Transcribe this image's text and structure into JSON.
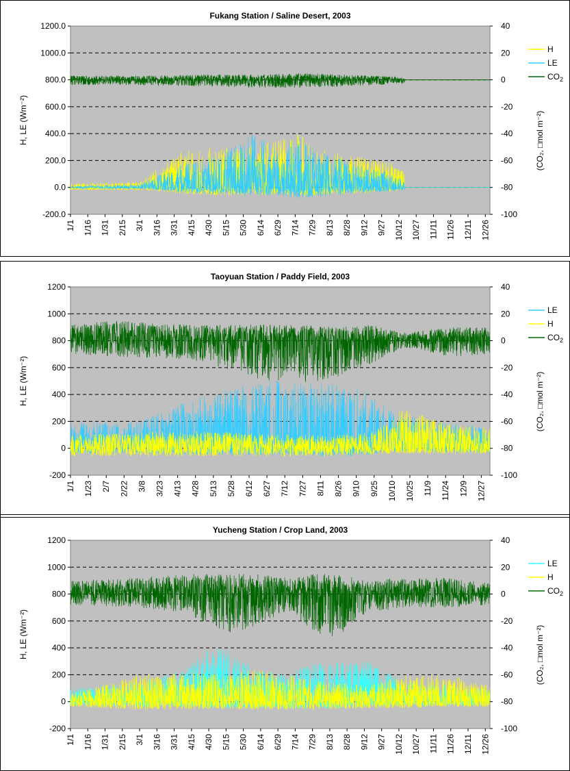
{
  "charts": [
    {
      "chart_data": {
        "type": "line",
        "title": "Fukang Station / Saline Desert, 2003",
        "ylabel": "H, LE (Wm⁻²)",
        "y2label": "(CO₂, □mol m⁻²)",
        "ylim": [
          -200,
          1200
        ],
        "y2lim": [
          -100,
          40
        ],
        "yticks": [
          "-200.0",
          "0.0",
          "200.0",
          "400.0",
          "600.0",
          "800.0",
          "1000.0",
          "1200.0"
        ],
        "y2ticks": [
          "-100",
          "-80",
          "-60",
          "-40",
          "-20",
          "0",
          "20",
          "40"
        ],
        "xticks": [
          "1/1",
          "1/16",
          "1/31",
          "2/15",
          "3/1",
          "3/16",
          "3/31",
          "4/15",
          "4/30",
          "5/15",
          "5/30",
          "6/14",
          "6/29",
          "7/14",
          "7/29",
          "8/13",
          "8/28",
          "9/12",
          "9/27",
          "10/12",
          "10/27",
          "11/11",
          "11/26",
          "12/11",
          "12/26"
        ],
        "x_start_day": 1,
        "x_step_days": 15,
        "legend_position": "right",
        "legend": [
          "H",
          "LE",
          "CO2"
        ],
        "grid": "dashed horizontal",
        "series": [
          {
            "name": "H",
            "color": "#ffff00",
            "axis": "left",
            "days": [
              1,
              60,
              80,
              100,
              130,
              160,
              180,
              200,
              220,
              240,
              260,
              280,
              290
            ],
            "peaks": [
              30,
              40,
              160,
              280,
              300,
              320,
              340,
              420,
              280,
              250,
              220,
              180,
              150
            ],
            "lows": [
              -20,
              -20,
              -30,
              -50,
              -60,
              -60,
              -60,
              -70,
              -60,
              -50,
              -40,
              -30,
              -20
            ],
            "end_day": 291
          },
          {
            "name": "LE",
            "color": "#33ccff",
            "axis": "left",
            "days": [
              1,
              60,
              80,
              100,
              130,
              160,
              180,
              200,
              220,
              240,
              260,
              280,
              290
            ],
            "peaks": [
              10,
              20,
              100,
              180,
              250,
              400,
              300,
              380,
              260,
              200,
              150,
              100,
              60
            ],
            "lows": [
              -10,
              -10,
              -20,
              -40,
              -50,
              -60,
              -60,
              -80,
              -70,
              -50,
              -40,
              -30,
              -20
            ],
            "end_day": 291
          },
          {
            "name": "CO2",
            "color": "#006600",
            "axis": "right",
            "days": [
              1,
              60,
              120,
              160,
              200,
              240,
              290
            ],
            "peaks": [
              3,
              3,
              4,
              4,
              5,
              4,
              2
            ],
            "lows": [
              -4,
              -4,
              -5,
              -6,
              -6,
              -5,
              -3
            ],
            "end_day": 291
          }
        ]
      }
    },
    {
      "chart_data": {
        "type": "line",
        "title": "Taoyuan Station / Paddy Field, 2003",
        "ylabel": "H, LE (Wm⁻²)",
        "y2label": "(CO₂, □mol m⁻²)",
        "ylim": [
          -200,
          1200
        ],
        "y2lim": [
          -100,
          40
        ],
        "yticks": [
          "-200",
          "0",
          "200",
          "400",
          "600",
          "800",
          "1000",
          "1200"
        ],
        "y2ticks": [
          "-100",
          "-80",
          "-60",
          "-40",
          "-20",
          "0",
          "20",
          "40"
        ],
        "xticks": [
          "1/1",
          "1/23",
          "2/7",
          "2/22",
          "3/8",
          "3/23",
          "4/13",
          "4/28",
          "5/13",
          "5/28",
          "6/12",
          "6/27",
          "7/12",
          "7/27",
          "8/11",
          "8/26",
          "9/10",
          "9/25",
          "10/10",
          "10/25",
          "11/9",
          "11/24",
          "12/9",
          "12/27"
        ],
        "x_start_day": 1,
        "x_step_days": 15.5,
        "legend_position": "right",
        "legend": [
          "LE",
          "H",
          "CO2"
        ],
        "grid": "dashed horizontal",
        "series": [
          {
            "name": "LE",
            "color": "#33ccff",
            "axis": "left",
            "days": [
              1,
              60,
              100,
              140,
              170,
              200,
              230,
              260,
              275,
              290,
              320,
              365
            ],
            "peaks": [
              200,
              200,
              350,
              450,
              500,
              520,
              480,
              420,
              300,
              250,
              200,
              150
            ],
            "lows": [
              -40,
              -40,
              -50,
              -50,
              -50,
              -60,
              -60,
              -50,
              -30,
              -20,
              -30,
              -30
            ],
            "end_day": 365
          },
          {
            "name": "H",
            "color": "#ffff00",
            "axis": "left",
            "days": [
              1,
              60,
              100,
              140,
              170,
              200,
              230,
              260,
              275,
              290,
              320,
              365
            ],
            "peaks": [
              100,
              120,
              130,
              120,
              110,
              100,
              100,
              120,
              200,
              300,
              200,
              150
            ],
            "lows": [
              -60,
              -60,
              -60,
              -60,
              -60,
              -60,
              -60,
              -50,
              -40,
              -40,
              -40,
              -40
            ],
            "end_day": 365
          },
          {
            "name": "CO2",
            "color": "#006600",
            "axis": "right",
            "days": [
              1,
              40,
              100,
              140,
              170,
              200,
              230,
              260,
              290,
              330,
              365
            ],
            "peaks": [
              12,
              15,
              12,
              12,
              12,
              12,
              10,
              12,
              6,
              10,
              10
            ],
            "lows": [
              -10,
              -12,
              -14,
              -22,
              -30,
              -32,
              -28,
              -18,
              -5,
              -12,
              -10
            ],
            "end_day": 365
          }
        ]
      }
    },
    {
      "chart_data": {
        "type": "line",
        "title": "Yucheng Station / Crop Land, 2003",
        "ylabel": "H, LE (Wm⁻²)",
        "y2label": "(CO₂, □mol m⁻²)",
        "ylim": [
          -200,
          1200
        ],
        "y2lim": [
          -100,
          40
        ],
        "yticks": [
          "-200",
          "0",
          "200",
          "400",
          "600",
          "800",
          "1000",
          "1200"
        ],
        "y2ticks": [
          "-100",
          "-80",
          "-60",
          "-40",
          "-20",
          "0",
          "20",
          "40"
        ],
        "xticks": [
          "1/1",
          "1/16",
          "1/31",
          "2/15",
          "3/1",
          "3/16",
          "3/31",
          "4/15",
          "4/30",
          "5/15",
          "5/30",
          "6/14",
          "6/29",
          "7/14",
          "7/29",
          "8/13",
          "8/28",
          "9/12",
          "9/27",
          "10/12",
          "10/27",
          "11/11",
          "11/26",
          "12/11",
          "12/26"
        ],
        "x_start_day": 1,
        "x_step_days": 15,
        "legend_position": "right",
        "legend": [
          "LE",
          "H",
          "CO2"
        ],
        "grid": "dashed horizontal",
        "series": [
          {
            "name": "LE",
            "color": "#33ffff",
            "axis": "left",
            "days": [
              1,
              60,
              100,
              120,
              140,
              160,
              190,
              210,
              230,
              260,
              290,
              365
            ],
            "peaks": [
              100,
              150,
              250,
              400,
              400,
              250,
              200,
              300,
              300,
              300,
              150,
              100
            ],
            "lows": [
              -30,
              -40,
              -40,
              -50,
              -50,
              -50,
              -50,
              -60,
              -50,
              -40,
              -30,
              -30
            ],
            "end_day": 365
          },
          {
            "name": "H",
            "color": "#ffff00",
            "axis": "left",
            "days": [
              1,
              60,
              100,
              140,
              160,
              190,
              220,
              260,
              290,
              330,
              365
            ],
            "peaks": [
              60,
              200,
              220,
              200,
              250,
              200,
              150,
              120,
              200,
              200,
              120
            ],
            "lows": [
              -40,
              -60,
              -60,
              -60,
              -60,
              -60,
              -60,
              -50,
              -50,
              -40,
              -40
            ],
            "end_day": 365
          },
          {
            "name": "CO2",
            "color": "#006600",
            "axis": "right",
            "days": [
              1,
              60,
              100,
              120,
              140,
              160,
              190,
              210,
              230,
              260,
              290,
              330,
              365
            ],
            "peaks": [
              10,
              12,
              15,
              15,
              15,
              15,
              12,
              15,
              15,
              10,
              12,
              12,
              8
            ],
            "lows": [
              -8,
              -10,
              -14,
              -22,
              -30,
              -25,
              -12,
              -28,
              -33,
              -14,
              -10,
              -10,
              -8
            ],
            "end_day": 365
          }
        ]
      }
    }
  ]
}
